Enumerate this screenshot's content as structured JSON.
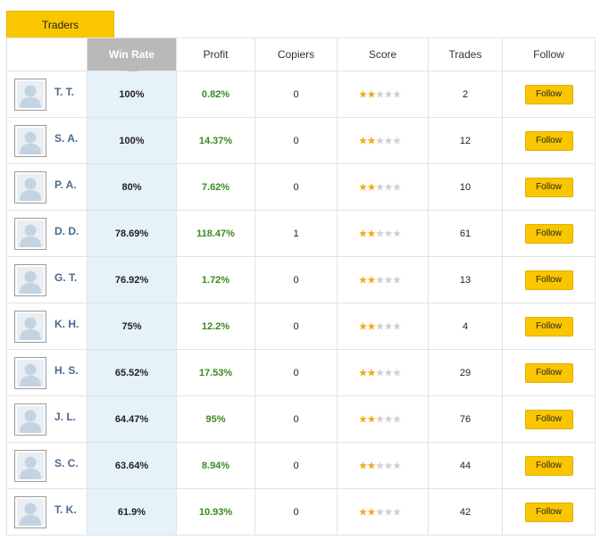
{
  "tab": "Traders",
  "table": {
    "headers": [
      "Win Rate",
      "Profit",
      "Copiers",
      "Score",
      "Trades",
      "Follow"
    ],
    "rows": [
      {
        "name": "T. T.",
        "win_rate": "100%",
        "profit": "0.82%",
        "copiers": 0,
        "score": 2,
        "trades": 2,
        "button": "Follow"
      },
      {
        "name": "S. A.",
        "win_rate": "100%",
        "profit": "14.37%",
        "copiers": 0,
        "score": 2,
        "trades": 12,
        "button": "Follow"
      },
      {
        "name": "P. A.",
        "win_rate": "80%",
        "profit": "7.62%",
        "copiers": 0,
        "score": 2,
        "trades": 10,
        "button": "Follow"
      },
      {
        "name": "D. D.",
        "win_rate": "78.69%",
        "profit": "118.47%",
        "copiers": 1,
        "score": 2,
        "trades": 61,
        "button": "Follow"
      },
      {
        "name": "G. T.",
        "win_rate": "76.92%",
        "profit": "1.72%",
        "copiers": 0,
        "score": 2,
        "trades": 13,
        "button": "Follow"
      },
      {
        "name": "K. H.",
        "win_rate": "75%",
        "profit": "12.2%",
        "copiers": 0,
        "score": 2,
        "trades": 4,
        "button": "Follow"
      },
      {
        "name": "H. S.",
        "win_rate": "65.52%",
        "profit": "17.53%",
        "copiers": 0,
        "score": 2,
        "trades": 29,
        "button": "Follow"
      },
      {
        "name": "J. L.",
        "win_rate": "64.47%",
        "profit": "95%",
        "copiers": 0,
        "score": 2,
        "trades": 76,
        "button": "Follow"
      },
      {
        "name": "S. C.",
        "win_rate": "63.64%",
        "profit": "8.94%",
        "copiers": 0,
        "score": 2,
        "trades": 44,
        "button": "Follow"
      },
      {
        "name": "T. K.",
        "win_rate": "61.9%",
        "profit": "10.93%",
        "copiers": 0,
        "score": 2,
        "trades": 42,
        "button": "Follow"
      }
    ]
  }
}
